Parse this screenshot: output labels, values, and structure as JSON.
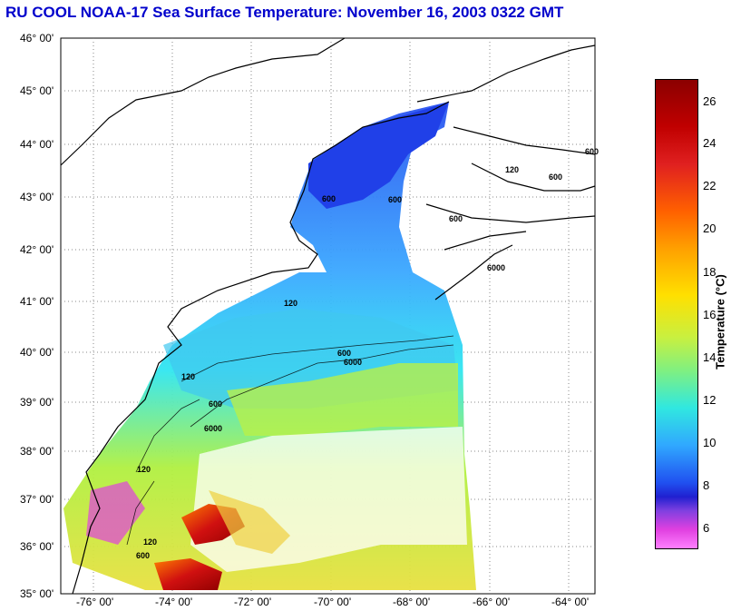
{
  "title": "RU COOL  NOAA-17  Sea Surface Temperature:  November 16, 2003 0322 GMT",
  "map": {
    "lat_labels": [
      "46° 00'",
      "45° 00'",
      "44° 00'",
      "43° 00'",
      "42° 00'",
      "41° 00'",
      "40° 00'",
      "39° 00'",
      "38° 00'",
      "37° 00'",
      "36° 00'",
      "35° 00'"
    ],
    "lon_labels": [
      "-76° 00'",
      "-74° 00'",
      "-72° 00'",
      "-70° 00'",
      "-68° 00'",
      "-66° 00'",
      "-64° 00'"
    ],
    "contour_labels": [
      "600",
      "600",
      "600",
      "600",
      "600",
      "6000",
      "120",
      "120",
      "120",
      "600",
      "6000",
      "600",
      "6000",
      "120",
      "600",
      "120"
    ]
  },
  "colorbar": {
    "label": "Temperature (°C)",
    "ticks": [
      "26",
      "24",
      "22",
      "20",
      "18",
      "16",
      "14",
      "12",
      "10",
      "8",
      "6"
    ]
  }
}
